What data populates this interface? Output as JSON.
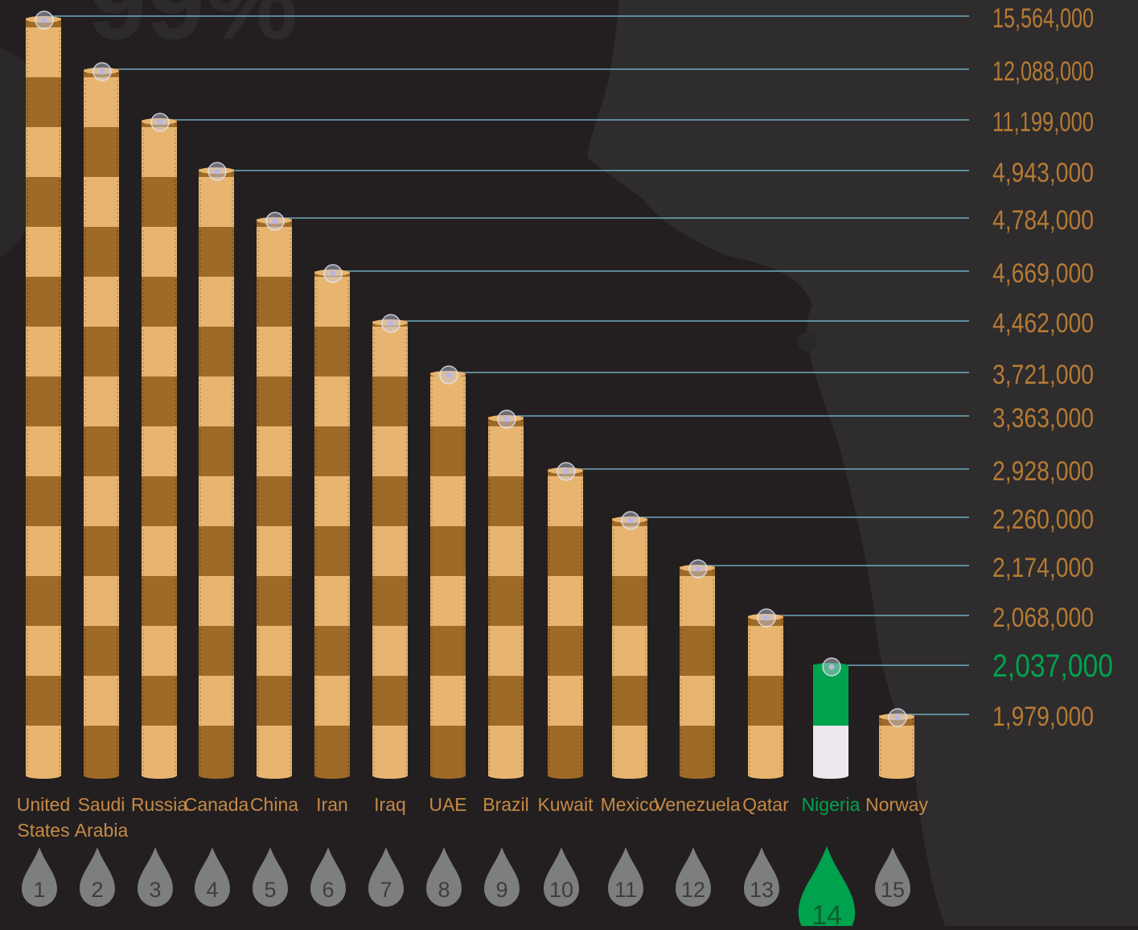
{
  "chart_data": {
    "type": "bar",
    "title": "",
    "xlabel": "",
    "ylabel": "",
    "highlight_index": 13,
    "categories": [
      [
        "United",
        "States"
      ],
      [
        "Saudi",
        "Arabia"
      ],
      [
        "Russia"
      ],
      [
        "Canada"
      ],
      [
        "China"
      ],
      [
        "Iran"
      ],
      [
        "Iraq"
      ],
      [
        "UAE"
      ],
      [
        "Brazil"
      ],
      [
        "Kuwait"
      ],
      [
        "Mexico"
      ],
      [
        "Venezuela"
      ],
      [
        "Qatar"
      ],
      [
        "Nigeria"
      ],
      [
        "Norway"
      ]
    ],
    "ranks": [
      "1",
      "2",
      "3",
      "4",
      "5",
      "6",
      "7",
      "8",
      "9",
      "10",
      "11",
      "12",
      "13",
      "14",
      "15"
    ],
    "values": [
      15564000,
      12088000,
      11199000,
      4943000,
      4784000,
      4669000,
      4462000,
      3721000,
      3363000,
      2928000,
      2260000,
      2174000,
      2068000,
      2037000,
      1979000
    ],
    "value_labels": [
      "15,564,000",
      "12,088,000",
      "11,199,000",
      "4,943,000",
      "4,784,000",
      "4,669,000",
      "4,462,000",
      "3,721,000",
      "3,363,000",
      "2,928,000",
      "2,260,000",
      "2,174,000",
      "2,068,000",
      "2,037,000",
      "1,979,000"
    ],
    "background_text": "99%"
  },
  "colors": {
    "background": "#231f20",
    "map": "#2e2c2d",
    "barrel_light": "#e8b570",
    "barrel_dark": "#9e6a28",
    "value_text": "#b57a34",
    "label_text": "#c58a45",
    "leader_line": "#7fc4dc",
    "highlight": "#00a24e",
    "highlight_light": "#ece8ee",
    "drop_grey": "#7d7e80",
    "drop_text": "#3e3e40"
  }
}
